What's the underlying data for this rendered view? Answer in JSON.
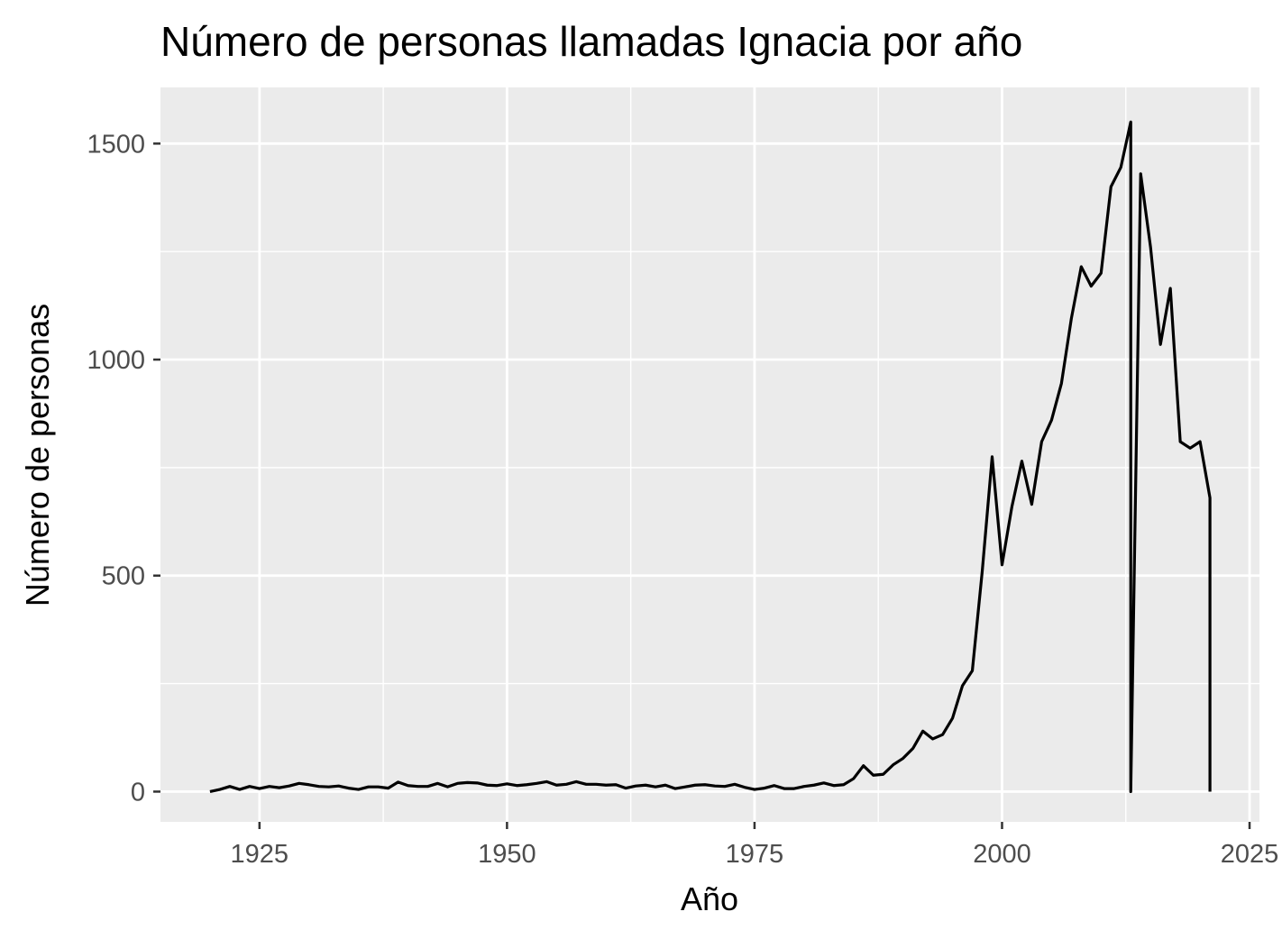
{
  "chart_data": {
    "type": "line",
    "title": "Número de personas llamadas Ignacia por año",
    "xlabel": "Año",
    "ylabel": "Número de personas",
    "xlim": [
      1915,
      2026
    ],
    "ylim": [
      -70,
      1630
    ],
    "x_ticks": [
      1925,
      1950,
      1975,
      2000,
      2025
    ],
    "x_tick_labels": [
      "1925",
      "1950",
      "1975",
      "2000",
      "2025"
    ],
    "y_ticks": [
      0,
      500,
      1000,
      1500
    ],
    "y_tick_labels": [
      "0",
      "500",
      "1000",
      "1500"
    ],
    "grid": true,
    "background": "#ebebeb",
    "line_color": "#000000",
    "series": [
      {
        "x": [
          1920,
          1921,
          1922,
          1923,
          1924,
          1925,
          1926,
          1927,
          1928,
          1929,
          1930,
          1931,
          1932,
          1933,
          1934,
          1935,
          1936,
          1937,
          1938,
          1939,
          1940,
          1941,
          1942,
          1943,
          1944,
          1945,
          1946,
          1947,
          1948,
          1949,
          1950,
          1951,
          1952,
          1953,
          1954,
          1955,
          1956,
          1957,
          1958,
          1959,
          1960,
          1961,
          1962,
          1963,
          1964,
          1965,
          1966,
          1967,
          1968,
          1969,
          1970,
          1971,
          1972,
          1973,
          1974,
          1975,
          1976,
          1977,
          1978,
          1979,
          1980,
          1981,
          1982,
          1983,
          1984,
          1985,
          1986,
          1987,
          1988,
          1989,
          1990,
          1991,
          1992,
          1993,
          1994,
          1995,
          1996,
          1997,
          1998,
          1999,
          2000,
          2001,
          2002,
          2003,
          2004,
          2005,
          2006,
          2007,
          2008,
          2009,
          2010,
          2011,
          2012,
          2013,
          2013,
          2014,
          2015,
          2016,
          2017,
          2018,
          2019,
          2020,
          2021,
          2021
        ],
        "y": [
          0,
          5,
          12,
          5,
          12,
          7,
          12,
          9,
          13,
          19,
          16,
          12,
          11,
          13,
          8,
          5,
          11,
          11,
          8,
          22,
          14,
          12,
          12,
          19,
          11,
          19,
          21,
          20,
          15,
          14,
          18,
          14,
          16,
          19,
          23,
          15,
          17,
          23,
          17,
          17,
          15,
          16,
          8,
          13,
          15,
          11,
          15,
          7,
          11,
          15,
          16,
          13,
          12,
          17,
          10,
          5,
          8,
          14,
          7,
          7,
          12,
          15,
          20,
          14,
          16,
          30,
          60,
          38,
          40,
          62,
          77,
          100,
          140,
          122,
          132,
          170,
          245,
          280,
          510,
          775,
          525,
          660,
          765,
          665,
          810,
          860,
          945,
          1095,
          1215,
          1170,
          1200,
          1400,
          1445,
          1550,
          0,
          1430,
          1260,
          1035,
          1165,
          810,
          795,
          810,
          680,
          0
        ]
      }
    ]
  }
}
